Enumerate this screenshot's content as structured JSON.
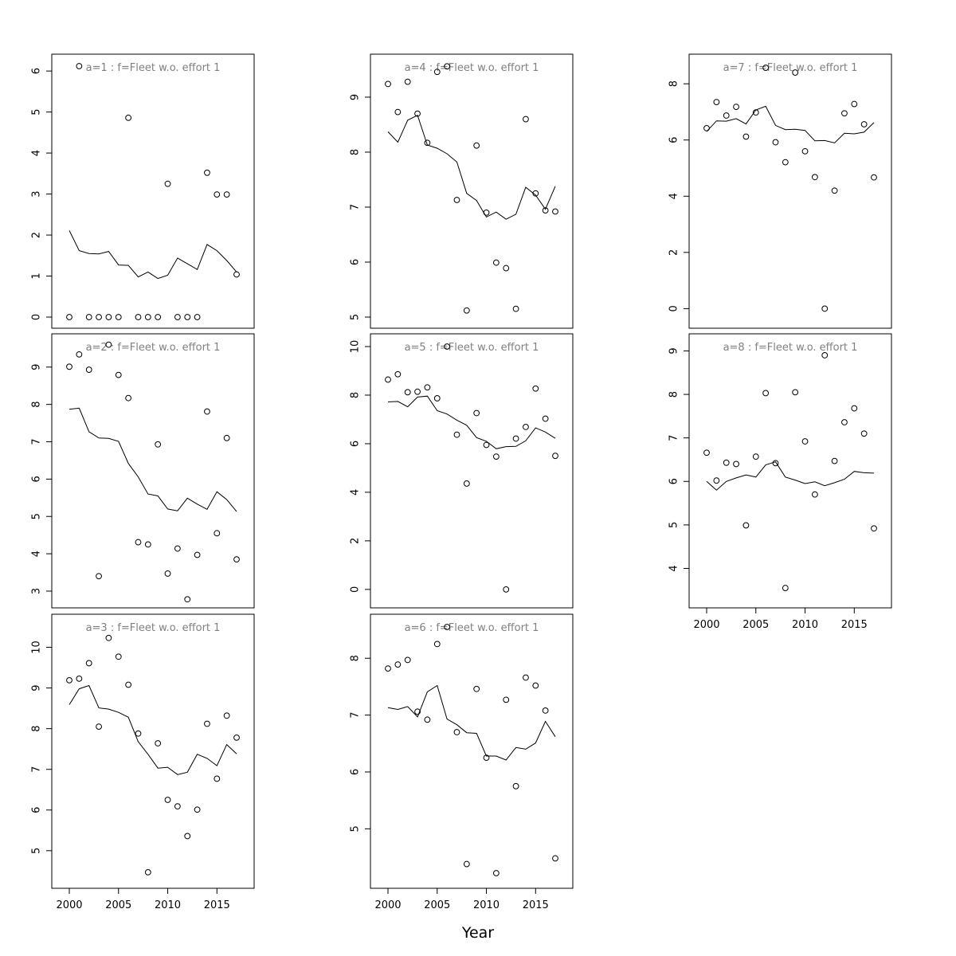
{
  "figure": {
    "xlabel": "Year"
  },
  "colors": {
    "points": "#000000",
    "fitted_line": "#000000",
    "panel_title": "#808080",
    "frame": "#000000"
  },
  "chart_data": [
    {
      "type": "scatter",
      "title": "a=1  :  f=Fleet w.o. effort 1",
      "xlim": [
        2000,
        2017
      ],
      "ylim": [
        0,
        6.1
      ],
      "yticks": [
        0,
        1,
        2,
        3,
        4,
        5,
        6
      ],
      "xticks": [
        2000,
        2005,
        2010,
        2015
      ],
      "show_xaxis": false,
      "series": [
        {
          "kind": "points",
          "x": [
            2000,
            2001,
            2002,
            2003,
            2004,
            2005,
            2006,
            2007,
            2008,
            2009,
            2010,
            2011,
            2012,
            2013,
            2014,
            2015,
            2016,
            2017
          ],
          "values": [
            0,
            6.12,
            0,
            0,
            0,
            0,
            4.86,
            0,
            0,
            0,
            3.25,
            0,
            0,
            0,
            3.52,
            2.99,
            2.99,
            1.04
          ]
        },
        {
          "kind": "line",
          "x": [
            2000,
            2001,
            2002,
            2003,
            2004,
            2005,
            2006,
            2007,
            2008,
            2009,
            2010,
            2011,
            2012,
            2013,
            2014,
            2015,
            2016,
            2017
          ],
          "values": [
            2.11,
            1.62,
            1.55,
            1.54,
            1.6,
            1.27,
            1.26,
            0.98,
            1.1,
            0.94,
            1.02,
            1.44,
            1.3,
            1.16,
            1.77,
            1.62,
            1.38,
            1.1
          ]
        }
      ]
    },
    {
      "type": "scatter",
      "title": "a=2  :  f=Fleet w.o. effort 1",
      "xlim": [
        2000,
        2017
      ],
      "ylim": [
        2.85,
        9.55
      ],
      "yticks": [
        3,
        4,
        5,
        6,
        7,
        8,
        9
      ],
      "xticks": [
        2000,
        2005,
        2010,
        2015
      ],
      "show_xaxis": false,
      "series": [
        {
          "kind": "points",
          "x": [
            2000,
            2001,
            2002,
            2003,
            2004,
            2005,
            2006,
            2007,
            2008,
            2009,
            2010,
            2011,
            2012,
            2013,
            2014,
            2015,
            2016,
            2017
          ],
          "values": [
            9.01,
            9.34,
            8.93,
            3.4,
            9.6,
            8.79,
            8.17,
            4.31,
            4.25,
            6.93,
            3.47,
            4.14,
            2.78,
            3.97,
            7.81,
            4.55,
            7.1,
            3.85
          ]
        },
        {
          "kind": "line",
          "x": [
            2000,
            2001,
            2002,
            2003,
            2004,
            2005,
            2006,
            2007,
            2008,
            2009,
            2010,
            2011,
            2012,
            2013,
            2014,
            2015,
            2016,
            2017
          ],
          "values": [
            7.87,
            7.9,
            7.27,
            7.1,
            7.09,
            7.01,
            6.42,
            6.06,
            5.6,
            5.55,
            5.2,
            5.15,
            5.49,
            5.33,
            5.19,
            5.66,
            5.45,
            5.13
          ]
        }
      ]
    },
    {
      "type": "scatter",
      "title": "a=3  :  f=Fleet w.o. effort 1",
      "xlim": [
        2000,
        2017
      ],
      "ylim": [
        4.35,
        10.5
      ],
      "yticks": [
        5,
        6,
        7,
        8,
        9,
        10
      ],
      "xticks": [
        2000,
        2005,
        2010,
        2015
      ],
      "show_xaxis": true,
      "series": [
        {
          "kind": "points",
          "x": [
            2000,
            2001,
            2002,
            2003,
            2004,
            2005,
            2006,
            2007,
            2008,
            2009,
            2010,
            2011,
            2012,
            2013,
            2014,
            2015,
            2016,
            2017
          ],
          "values": [
            9.19,
            9.23,
            9.61,
            8.05,
            10.23,
            9.77,
            9.08,
            7.88,
            4.47,
            7.64,
            6.25,
            6.09,
            5.36,
            6.01,
            8.12,
            6.77,
            8.32,
            7.78
          ]
        },
        {
          "kind": "line",
          "x": [
            2000,
            2001,
            2002,
            2003,
            2004,
            2005,
            2006,
            2007,
            2008,
            2009,
            2010,
            2011,
            2012,
            2013,
            2014,
            2015,
            2016,
            2017
          ],
          "values": [
            8.59,
            8.98,
            9.06,
            8.51,
            8.48,
            8.4,
            8.28,
            7.68,
            7.37,
            7.03,
            7.05,
            6.87,
            6.93,
            7.37,
            7.27,
            7.09,
            7.61,
            7.38
          ]
        }
      ]
    },
    {
      "type": "scatter",
      "title": "a=4  :  f=Fleet w.o. effort 1",
      "xlim": [
        2000,
        2017
      ],
      "ylim": [
        5.0,
        9.55
      ],
      "yticks": [
        5,
        6,
        7,
        8,
        9
      ],
      "xticks": [
        2000,
        2005,
        2010,
        2015
      ],
      "show_xaxis": false,
      "series": [
        {
          "kind": "points",
          "x": [
            2000,
            2001,
            2002,
            2003,
            2004,
            2005,
            2006,
            2007,
            2008,
            2009,
            2010,
            2011,
            2012,
            2013,
            2014,
            2015,
            2016,
            2017
          ],
          "values": [
            9.24,
            8.73,
            9.28,
            8.7,
            8.17,
            9.46,
            9.56,
            7.13,
            5.12,
            8.12,
            6.9,
            5.99,
            5.89,
            5.15,
            8.6,
            7.25,
            6.94,
            6.92
          ]
        },
        {
          "kind": "line",
          "x": [
            2000,
            2001,
            2002,
            2003,
            2004,
            2005,
            2006,
            2007,
            2008,
            2009,
            2010,
            2011,
            2012,
            2013,
            2014,
            2015,
            2016,
            2017
          ],
          "values": [
            8.37,
            8.18,
            8.58,
            8.67,
            8.13,
            8.07,
            7.97,
            7.82,
            7.25,
            7.12,
            6.82,
            6.91,
            6.78,
            6.87,
            7.36,
            7.22,
            6.96,
            7.38
          ]
        }
      ]
    },
    {
      "type": "scatter",
      "title": "a=5  :  f=Fleet w.o. effort 1",
      "xlim": [
        2000,
        2017
      ],
      "ylim": [
        -0.3,
        10.0
      ],
      "yticks": [
        0,
        2,
        4,
        6,
        8,
        10
      ],
      "xticks": [
        2000,
        2005,
        2010,
        2015
      ],
      "show_xaxis": false,
      "series": [
        {
          "kind": "points",
          "x": [
            2000,
            2001,
            2002,
            2003,
            2004,
            2005,
            2006,
            2007,
            2008,
            2009,
            2010,
            2011,
            2012,
            2013,
            2014,
            2015,
            2016,
            2017
          ],
          "values": [
            8.64,
            8.86,
            8.12,
            8.14,
            8.32,
            7.87,
            10.0,
            6.37,
            4.36,
            7.26,
            5.95,
            5.47,
            0,
            6.21,
            6.69,
            8.27,
            7.03,
            5.5
          ]
        },
        {
          "kind": "line",
          "x": [
            2000,
            2001,
            2002,
            2003,
            2004,
            2005,
            2006,
            2007,
            2008,
            2009,
            2010,
            2011,
            2012,
            2013,
            2014,
            2015,
            2016,
            2017
          ],
          "values": [
            7.72,
            7.74,
            7.52,
            7.92,
            7.96,
            7.36,
            7.22,
            6.97,
            6.76,
            6.25,
            6.1,
            5.79,
            5.88,
            5.89,
            6.12,
            6.65,
            6.48,
            6.22
          ]
        }
      ]
    },
    {
      "type": "scatter",
      "title": "a=6  :  f=Fleet w.o. effort 1",
      "xlim": [
        2000,
        2017
      ],
      "ylim": [
        4.15,
        8.55
      ],
      "yticks": [
        5,
        6,
        7,
        8
      ],
      "xticks": [
        2000,
        2005,
        2010,
        2015
      ],
      "show_xaxis": true,
      "series": [
        {
          "kind": "points",
          "x": [
            2000,
            2001,
            2002,
            2003,
            2004,
            2005,
            2006,
            2007,
            2008,
            2009,
            2010,
            2011,
            2012,
            2013,
            2014,
            2015,
            2016,
            2017
          ],
          "values": [
            7.82,
            7.89,
            7.97,
            7.06,
            6.92,
            8.25,
            8.55,
            6.7,
            4.38,
            7.46,
            6.25,
            4.22,
            7.27,
            5.75,
            7.66,
            7.52,
            7.08,
            4.48
          ]
        },
        {
          "kind": "line",
          "x": [
            2000,
            2001,
            2002,
            2003,
            2004,
            2005,
            2006,
            2007,
            2008,
            2009,
            2010,
            2011,
            2012,
            2013,
            2014,
            2015,
            2016,
            2017
          ],
          "values": [
            7.13,
            7.1,
            7.15,
            6.97,
            7.41,
            7.52,
            6.93,
            6.83,
            6.69,
            6.68,
            6.28,
            6.28,
            6.21,
            6.43,
            6.4,
            6.51,
            6.89,
            6.62
          ]
        }
      ]
    },
    {
      "type": "scatter",
      "title": "a=7  :  f=Fleet w.o. effort 1",
      "xlim": [
        2000,
        2017
      ],
      "ylim": [
        -0.3,
        8.6
      ],
      "yticks": [
        0,
        2,
        4,
        6,
        8
      ],
      "xticks": [
        2000,
        2005,
        2010,
        2015
      ],
      "show_xaxis": false,
      "series": [
        {
          "kind": "points",
          "x": [
            2000,
            2001,
            2002,
            2003,
            2004,
            2005,
            2006,
            2007,
            2008,
            2009,
            2010,
            2011,
            2012,
            2013,
            2014,
            2015,
            2016,
            2017
          ],
          "values": [
            6.42,
            7.35,
            6.87,
            7.18,
            6.12,
            6.98,
            8.57,
            5.92,
            5.21,
            8.4,
            5.6,
            4.68,
            0,
            4.2,
            6.95,
            7.28,
            6.56,
            4.67
          ]
        },
        {
          "kind": "line",
          "x": [
            2000,
            2001,
            2002,
            2003,
            2004,
            2005,
            2006,
            2007,
            2008,
            2009,
            2010,
            2011,
            2012,
            2013,
            2014,
            2015,
            2016,
            2017
          ],
          "values": [
            6.3,
            6.68,
            6.67,
            6.76,
            6.57,
            7.07,
            7.2,
            6.52,
            6.37,
            6.38,
            6.34,
            5.97,
            5.98,
            5.9,
            6.24,
            6.22,
            6.28,
            6.62
          ]
        }
      ]
    },
    {
      "type": "scatter",
      "title": "a=8  :  f=Fleet w.o. effort 1",
      "xlim": [
        2000,
        2017
      ],
      "ylim": [
        3.35,
        9.1
      ],
      "yticks": [
        4,
        5,
        6,
        7,
        8,
        9
      ],
      "xticks": [
        2000,
        2005,
        2010,
        2015
      ],
      "show_xaxis": true,
      "series": [
        {
          "kind": "points",
          "x": [
            2000,
            2001,
            2002,
            2003,
            2004,
            2005,
            2006,
            2007,
            2008,
            2009,
            2010,
            2011,
            2012,
            2013,
            2014,
            2015,
            2016,
            2017
          ],
          "values": [
            6.66,
            6.02,
            6.43,
            6.4,
            4.99,
            6.57,
            8.03,
            6.42,
            3.55,
            8.05,
            6.92,
            5.7,
            8.9,
            6.47,
            7.36,
            7.68,
            7.1,
            4.92
          ]
        },
        {
          "kind": "line",
          "x": [
            2000,
            2001,
            2002,
            2003,
            2004,
            2005,
            2006,
            2007,
            2008,
            2009,
            2010,
            2011,
            2012,
            2013,
            2014,
            2015,
            2016,
            2017
          ],
          "values": [
            6.0,
            5.8,
            6.0,
            6.08,
            6.15,
            6.1,
            6.38,
            6.45,
            6.1,
            6.03,
            5.95,
            5.99,
            5.9,
            5.97,
            6.05,
            6.23,
            6.2,
            6.19
          ]
        }
      ]
    }
  ]
}
